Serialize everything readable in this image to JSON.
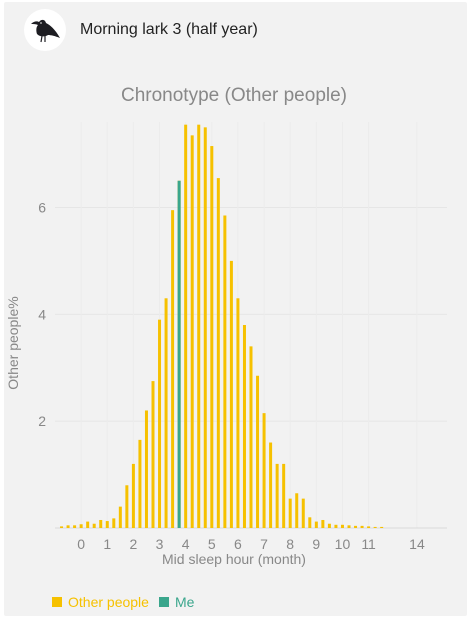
{
  "header": {
    "title": "Morning lark 3 (half year)",
    "icon": "bird-icon"
  },
  "chart_data": {
    "type": "bar",
    "title": "Chronotype (Other people)",
    "xlabel": "Mid sleep hour (month)",
    "ylabel": "Other people%",
    "x_tick_labels": [
      "0",
      "1",
      "2",
      "3",
      "4",
      "5",
      "6",
      "7",
      "8",
      "9",
      "10",
      "11",
      "14"
    ],
    "y_tick_labels": [
      "2",
      "4",
      "6"
    ],
    "xlim": [
      -1,
      14
    ],
    "ylim": [
      0,
      7.6
    ],
    "grid": true,
    "legend_position": "bottom-left",
    "series": [
      {
        "name": "Other people",
        "color": "#f6c100",
        "x": [
          -0.75,
          -0.5,
          -0.25,
          0,
          0.25,
          0.5,
          0.75,
          1,
          1.25,
          1.5,
          1.75,
          2,
          2.25,
          2.5,
          2.75,
          3,
          3.25,
          3.5,
          3.75,
          4,
          4.25,
          4.5,
          4.75,
          5,
          5.25,
          5.5,
          5.75,
          6,
          6.25,
          6.5,
          6.75,
          7,
          7.25,
          7.5,
          7.75,
          8,
          8.25,
          8.5,
          8.75,
          9,
          9.25,
          9.5,
          9.75,
          10,
          10.25,
          10.5,
          10.75,
          11,
          11.25,
          11.5
        ],
        "values": [
          0.03,
          0.05,
          0.05,
          0.07,
          0.12,
          0.08,
          0.15,
          0.13,
          0.18,
          0.4,
          0.8,
          1.2,
          1.65,
          2.2,
          2.75,
          3.9,
          4.3,
          5.95,
          6.5,
          7.55,
          7.35,
          7.55,
          7.5,
          7.15,
          6.55,
          5.85,
          5.0,
          4.3,
          3.8,
          3.4,
          2.85,
          2.15,
          1.6,
          1.2,
          1.2,
          0.55,
          0.65,
          0.55,
          0.2,
          0.12,
          0.15,
          0.08,
          0.06,
          0.06,
          0.05,
          0.04,
          0.04,
          0.03,
          0.02,
          0.02
        ]
      },
      {
        "name": "Me",
        "color": "#3aa68c",
        "x": [
          3.75
        ],
        "values": [
          6.5
        ]
      }
    ]
  }
}
